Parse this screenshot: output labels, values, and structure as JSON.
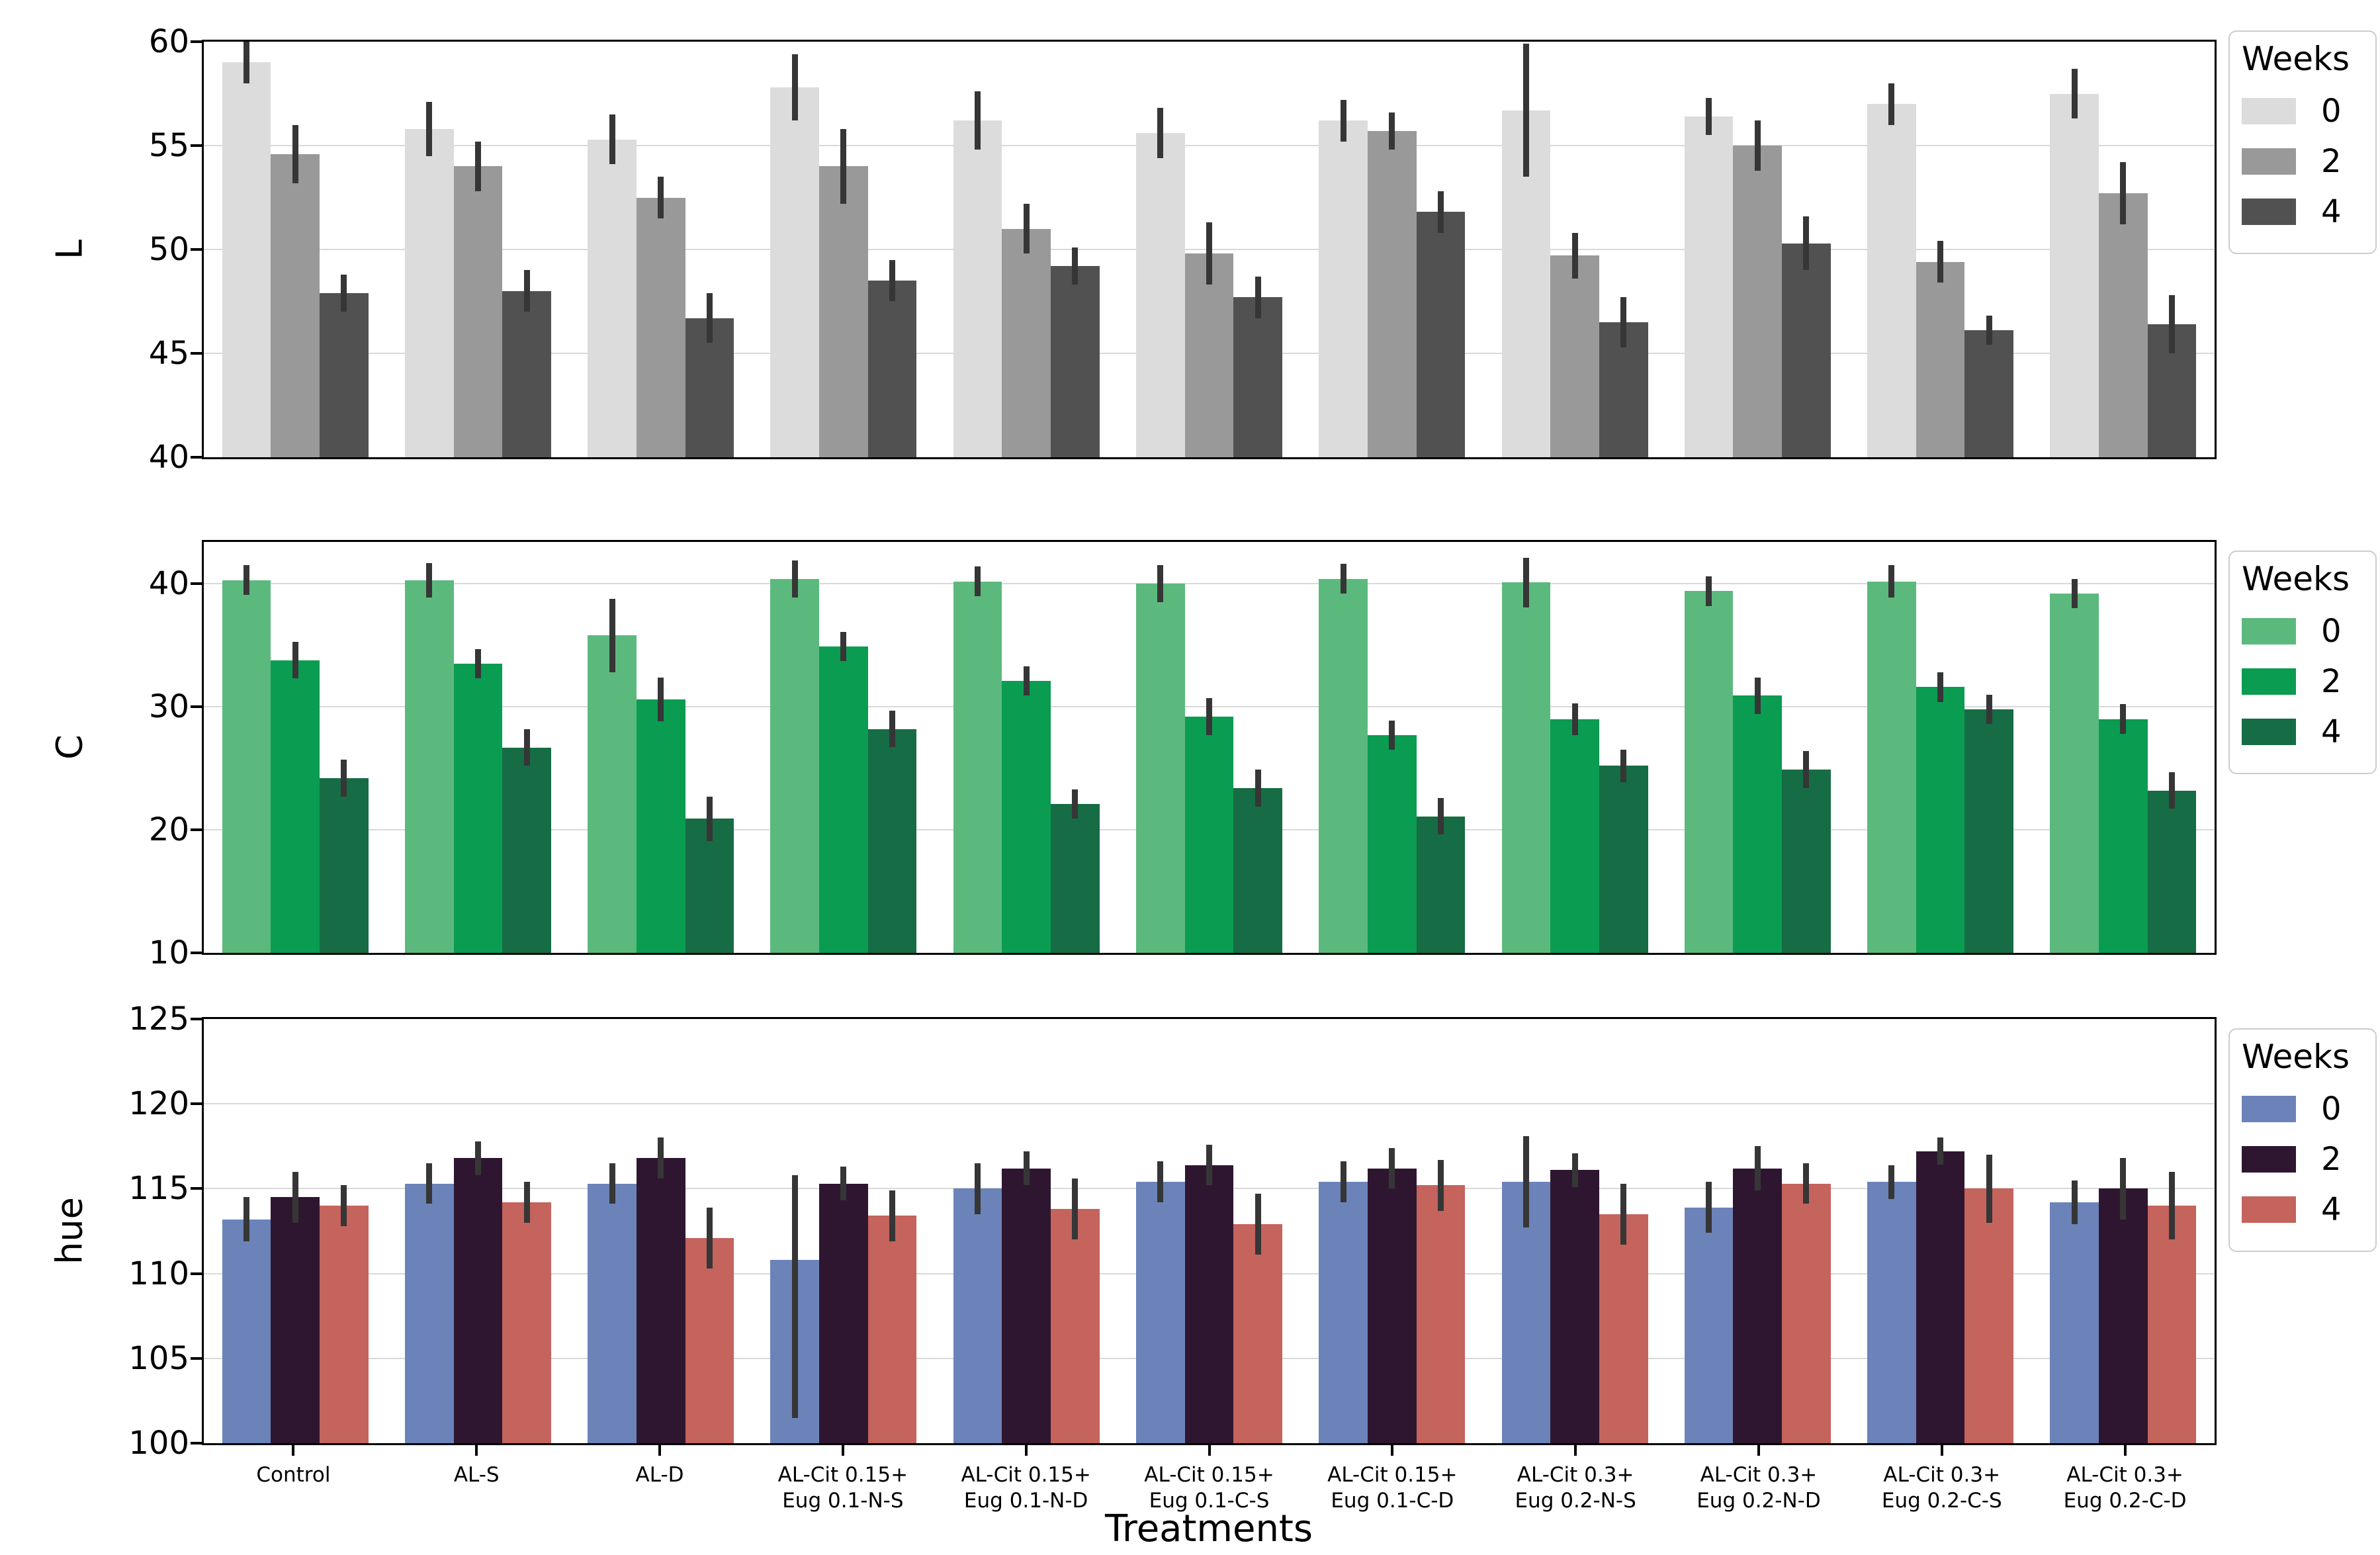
{
  "figure": {
    "xlabel": "Treatments",
    "legend_title": "Weeks",
    "background": "#ffffff",
    "grid_color": "#d9d9d9",
    "spine_color": "#000000",
    "error_bar_color": "#363636"
  },
  "treatments": [
    "Control",
    "AL-S",
    "AL-D",
    "AL-Cit 0.15+\nEug 0.1-N-S",
    "AL-Cit 0.15+\nEug 0.1-N-D",
    "AL-Cit 0.15+\nEug 0.1-C-S",
    "AL-Cit 0.15+\nEug 0.1-C-D",
    "AL-Cit 0.3+\nEug 0.2-N-S",
    "AL-Cit 0.3+\nEug 0.2-N-D",
    "AL-Cit 0.3+\nEug 0.2-C-S",
    "AL-Cit 0.3+\nEug 0.2-C-D"
  ],
  "weeks": [
    "0",
    "2",
    "4"
  ],
  "chart_data": [
    {
      "type": "bar",
      "ylabel": "L",
      "ylim": [
        40,
        60
      ],
      "yticks": [
        40,
        45,
        50,
        55,
        60
      ],
      "grid": true,
      "legend": {
        "title": "Weeks",
        "entries": [
          "0",
          "2",
          "4"
        ],
        "position": "outside upper right"
      },
      "colors": [
        "#dcdcdc",
        "#999999",
        "#515151"
      ],
      "categories_ref": "treatments",
      "series": [
        {
          "name": "0",
          "values": [
            59.0,
            55.8,
            55.3,
            57.8,
            56.2,
            55.6,
            56.2,
            56.7,
            56.4,
            57.0,
            57.5
          ],
          "errors": [
            1.0,
            1.3,
            1.2,
            1.6,
            1.4,
            1.2,
            1.0,
            3.2,
            0.9,
            1.0,
            1.2
          ]
        },
        {
          "name": "2",
          "values": [
            54.6,
            54.0,
            52.5,
            54.0,
            51.0,
            49.8,
            55.7,
            49.7,
            55.0,
            49.4,
            52.7
          ],
          "errors": [
            1.4,
            1.2,
            1.0,
            1.8,
            1.2,
            1.5,
            0.9,
            1.1,
            1.2,
            1.0,
            1.5
          ]
        },
        {
          "name": "4",
          "values": [
            47.9,
            48.0,
            46.7,
            48.5,
            49.2,
            47.7,
            51.8,
            46.5,
            50.3,
            46.1,
            46.4
          ],
          "errors": [
            0.9,
            1.0,
            1.2,
            1.0,
            0.9,
            1.0,
            1.0,
            1.2,
            1.3,
            0.7,
            1.4
          ]
        }
      ]
    },
    {
      "type": "bar",
      "ylabel": "C",
      "ylim": [
        10,
        43.4
      ],
      "yticks": [
        10,
        20,
        30,
        40
      ],
      "grid": true,
      "legend": {
        "title": "Weeks",
        "entries": [
          "0",
          "2",
          "4"
        ],
        "position": "outside upper right"
      },
      "colors": [
        "#5cb97e",
        "#0a9c51",
        "#166c44"
      ],
      "categories_ref": "treatments",
      "series": [
        {
          "name": "0",
          "values": [
            40.3,
            40.3,
            35.8,
            40.4,
            40.2,
            40.0,
            40.4,
            40.1,
            39.4,
            40.2,
            39.2
          ],
          "errors": [
            1.2,
            1.4,
            3.0,
            1.5,
            1.2,
            1.5,
            1.2,
            2.0,
            1.2,
            1.3,
            1.2
          ]
        },
        {
          "name": "2",
          "values": [
            33.8,
            33.5,
            30.6,
            34.9,
            32.1,
            29.2,
            27.7,
            29.0,
            30.9,
            31.6,
            29.0
          ],
          "errors": [
            1.5,
            1.2,
            1.8,
            1.2,
            1.2,
            1.5,
            1.2,
            1.3,
            1.5,
            1.2,
            1.2
          ]
        },
        {
          "name": "4",
          "values": [
            24.2,
            26.7,
            20.9,
            28.2,
            22.1,
            23.4,
            21.1,
            25.2,
            24.9,
            29.8,
            23.2
          ],
          "errors": [
            1.5,
            1.5,
            1.8,
            1.5,
            1.2,
            1.5,
            1.5,
            1.3,
            1.5,
            1.2,
            1.5
          ]
        }
      ]
    },
    {
      "type": "bar",
      "ylabel": "hue",
      "ylim": [
        100,
        125
      ],
      "yticks": [
        100,
        105,
        110,
        115,
        120,
        125
      ],
      "grid": true,
      "legend": {
        "title": "Weeks",
        "entries": [
          "0",
          "2",
          "4"
        ],
        "position": "outside upper right"
      },
      "colors": [
        "#6b83b9",
        "#2f1630",
        "#c5635d"
      ],
      "categories_ref": "treatments",
      "series": [
        {
          "name": "0",
          "values": [
            113.2,
            115.3,
            115.3,
            110.8,
            115.0,
            115.4,
            115.4,
            115.4,
            113.9,
            115.4,
            114.2
          ],
          "errors": [
            1.3,
            1.2,
            1.2,
            [
              9.3,
              5.0
            ],
            1.5,
            1.2,
            1.2,
            2.7,
            1.5,
            1.0,
            1.3
          ]
        },
        {
          "name": "2",
          "values": [
            114.5,
            116.8,
            116.8,
            115.3,
            116.2,
            116.4,
            116.2,
            116.1,
            116.2,
            117.2,
            115.0
          ],
          "errors": [
            1.5,
            1.0,
            1.2,
            1.0,
            1.0,
            1.2,
            1.2,
            1.0,
            1.3,
            0.8,
            1.8
          ]
        },
        {
          "name": "4",
          "values": [
            114.0,
            114.2,
            112.1,
            113.4,
            113.8,
            112.9,
            115.2,
            113.5,
            115.3,
            115.0,
            114.0
          ],
          "errors": [
            1.2,
            1.2,
            1.8,
            1.5,
            1.8,
            1.8,
            1.5,
            1.8,
            1.2,
            2.0,
            2.0
          ]
        }
      ]
    }
  ]
}
